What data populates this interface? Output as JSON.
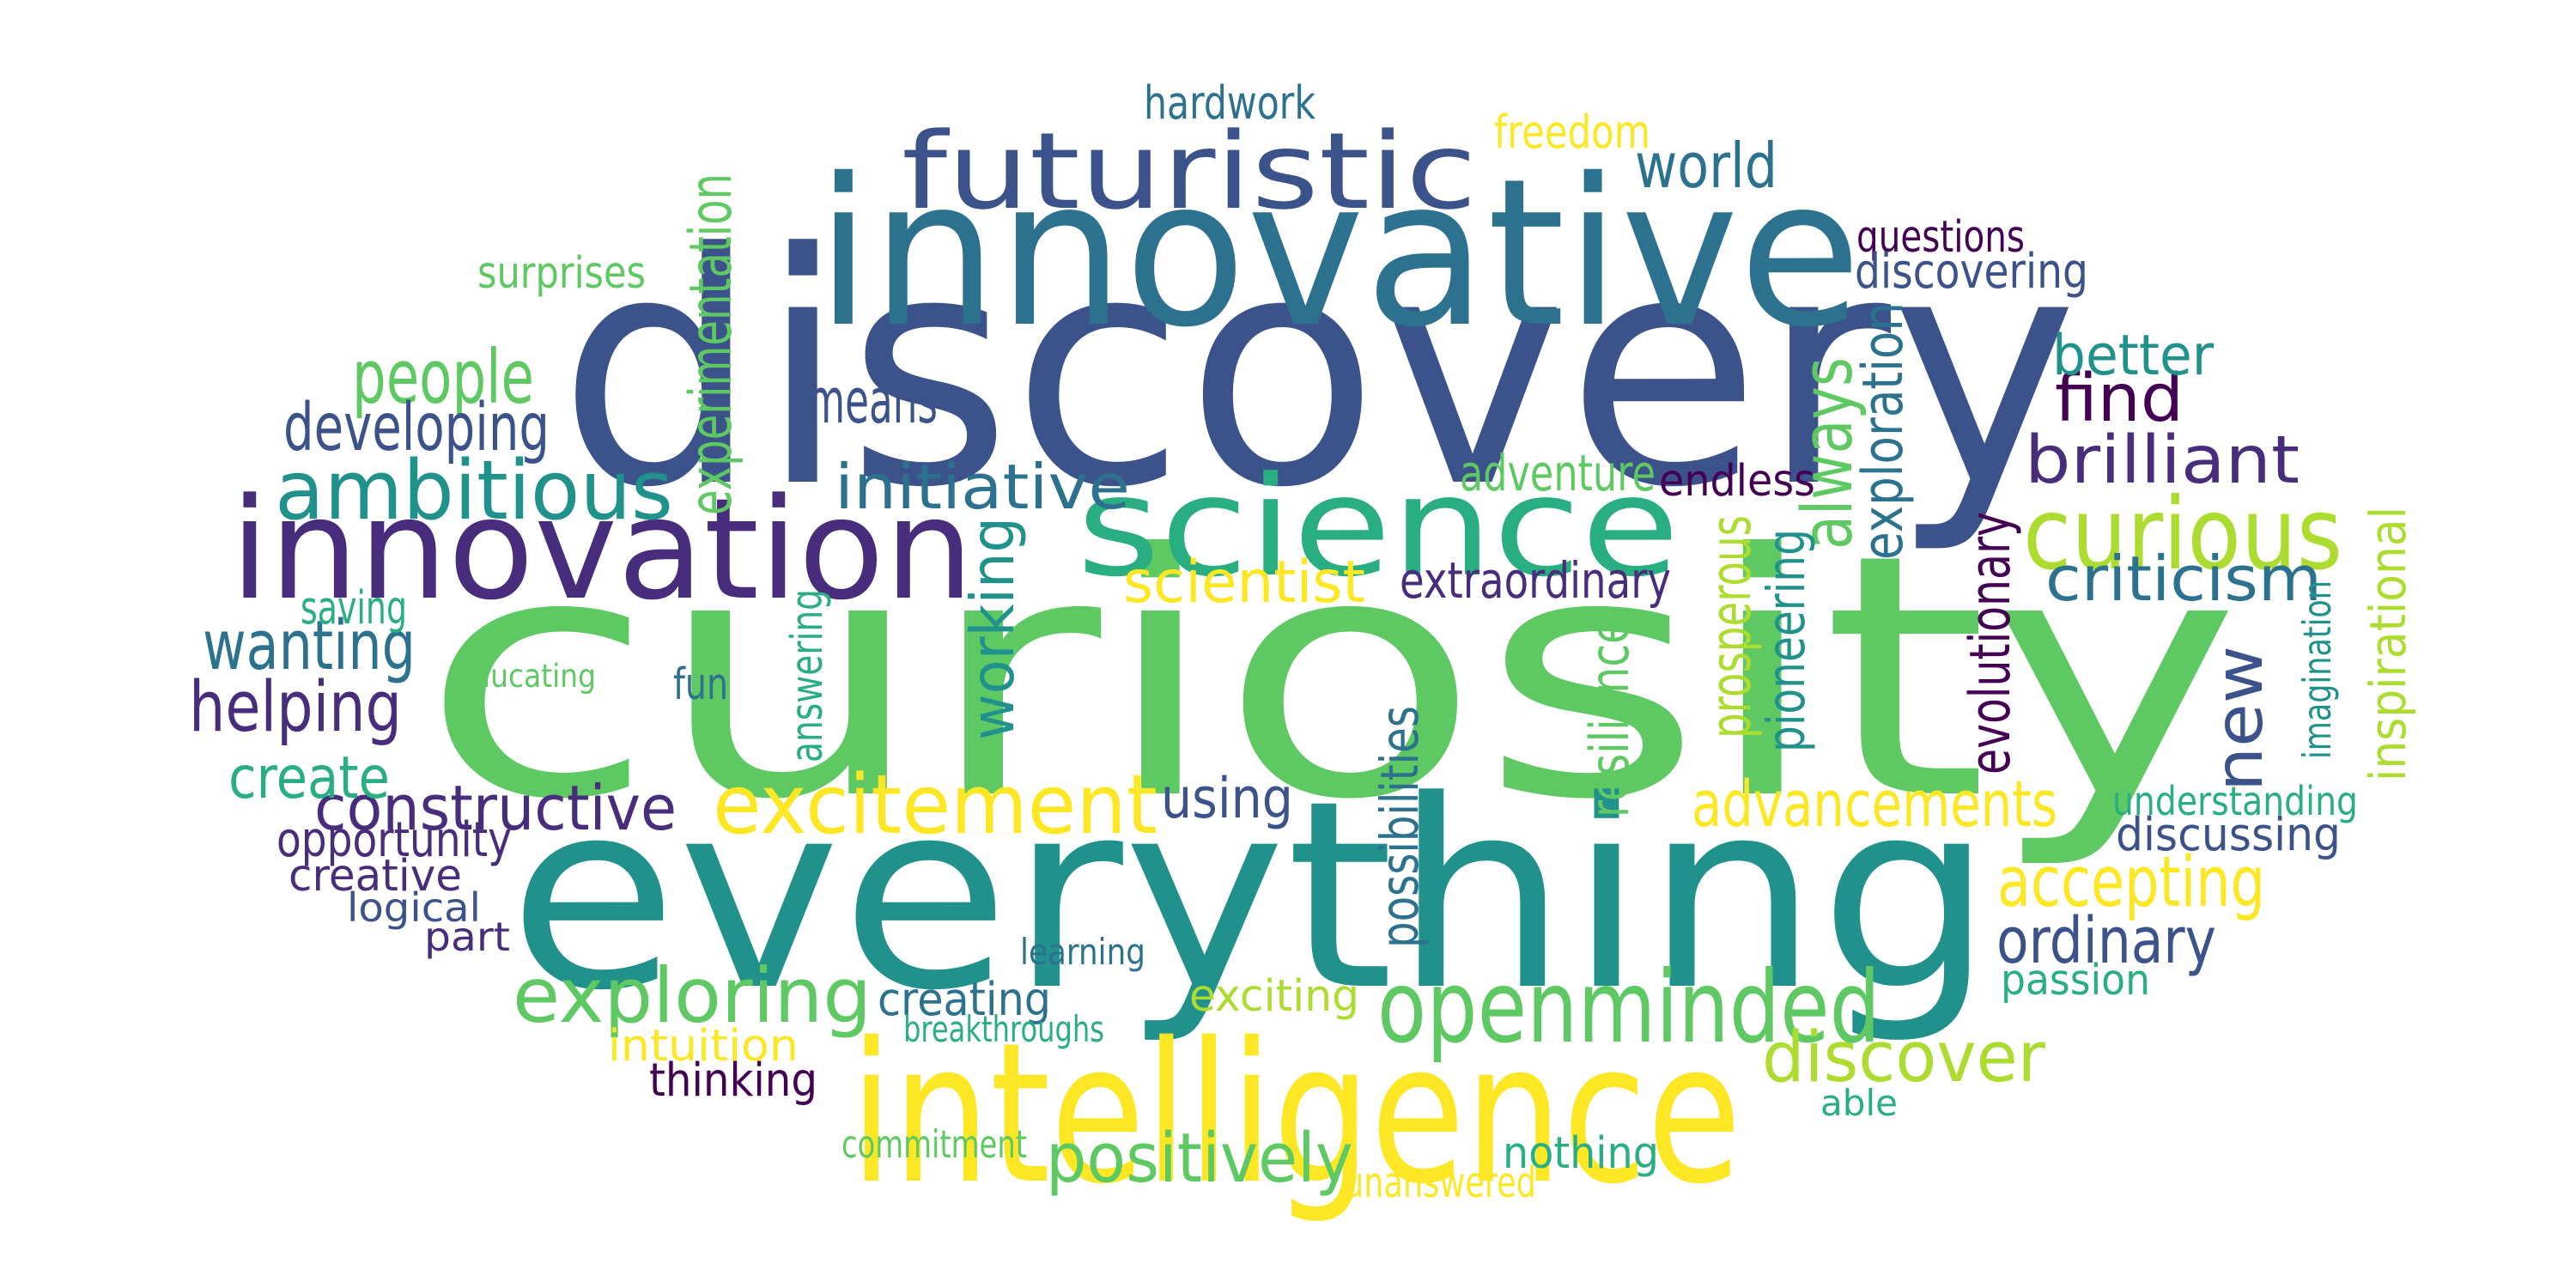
{
  "palette": {
    "dark_purple": "#440154",
    "purple": "#472d7b",
    "indigo": "#3b528b",
    "blue": "#2c728e",
    "teal": "#21918c",
    "sea_green": "#28ae80",
    "green": "#5ec962",
    "lime": "#addc30",
    "yellow": "#fde725"
  },
  "words": [
    {
      "text": "curiosity",
      "color": "green",
      "vertical": false
    },
    {
      "text": "discovery",
      "color": "indigo",
      "vertical": false
    },
    {
      "text": "everything",
      "color": "teal",
      "vertical": false
    },
    {
      "text": "innovative",
      "color": "blue",
      "vertical": false
    },
    {
      "text": "intelligence",
      "color": "yellow",
      "vertical": false
    },
    {
      "text": "innovation",
      "color": "purple",
      "vertical": false
    },
    {
      "text": "science",
      "color": "sea_green",
      "vertical": false
    },
    {
      "text": "futuristic",
      "color": "indigo",
      "vertical": false
    },
    {
      "text": "openminded",
      "color": "green",
      "vertical": false
    },
    {
      "text": "curious",
      "color": "lime",
      "vertical": false
    },
    {
      "text": "excitement",
      "color": "yellow",
      "vertical": false
    },
    {
      "text": "exploring",
      "color": "green",
      "vertical": false
    },
    {
      "text": "ambitious",
      "color": "teal",
      "vertical": false
    },
    {
      "text": "new",
      "color": "indigo",
      "vertical": true
    },
    {
      "text": "positively",
      "color": "green",
      "vertical": false
    },
    {
      "text": "discover",
      "color": "lime",
      "vertical": false
    },
    {
      "text": "accepting",
      "color": "yellow",
      "vertical": false
    },
    {
      "text": "brilliant",
      "color": "purple",
      "vertical": false
    },
    {
      "text": "criticism",
      "color": "blue",
      "vertical": false
    },
    {
      "text": "advancements",
      "color": "yellow",
      "vertical": false
    },
    {
      "text": "constructive",
      "color": "purple",
      "vertical": false
    },
    {
      "text": "initiative",
      "color": "blue",
      "vertical": false
    },
    {
      "text": "people",
      "color": "green",
      "vertical": false
    },
    {
      "text": "wanting",
      "color": "blue",
      "vertical": false
    },
    {
      "text": "helping",
      "color": "purple",
      "vertical": false
    },
    {
      "text": "developing",
      "color": "indigo",
      "vertical": false
    },
    {
      "text": "working",
      "color": "teal",
      "vertical": true
    },
    {
      "text": "always",
      "color": "green",
      "vertical": true
    },
    {
      "text": "ordinary",
      "color": "indigo",
      "vertical": false
    },
    {
      "text": "find",
      "color": "dark_purple",
      "vertical": false
    },
    {
      "text": "world",
      "color": "blue",
      "vertical": false
    },
    {
      "text": "better",
      "color": "teal",
      "vertical": false
    },
    {
      "text": "means",
      "color": "indigo",
      "vertical": false
    },
    {
      "text": "scientist",
      "color": "yellow",
      "vertical": false
    },
    {
      "text": "create",
      "color": "sea_green",
      "vertical": false
    },
    {
      "text": "using",
      "color": "indigo",
      "vertical": false
    },
    {
      "text": "hardwork",
      "color": "blue",
      "vertical": false
    },
    {
      "text": "freedom",
      "color": "yellow",
      "vertical": false
    },
    {
      "text": "questions",
      "color": "dark_purple",
      "vertical": false
    },
    {
      "text": "discovering",
      "color": "indigo",
      "vertical": false
    },
    {
      "text": "surprises",
      "color": "green",
      "vertical": false
    },
    {
      "text": "experimentation",
      "color": "green",
      "vertical": true
    },
    {
      "text": "adventure",
      "color": "green",
      "vertical": false
    },
    {
      "text": "endless",
      "color": "dark_purple",
      "vertical": false
    },
    {
      "text": "exploration",
      "color": "blue",
      "vertical": true
    },
    {
      "text": "extraordinary",
      "color": "purple",
      "vertical": false
    },
    {
      "text": "prosperous",
      "color": "lime",
      "vertical": true
    },
    {
      "text": "pioneering",
      "color": "teal",
      "vertical": true
    },
    {
      "text": "evolutionary",
      "color": "dark_purple",
      "vertical": true
    },
    {
      "text": "inspirational",
      "color": "lime",
      "vertical": true
    },
    {
      "text": "imagination",
      "color": "teal",
      "vertical": true
    },
    {
      "text": "saving",
      "color": "sea_green",
      "vertical": false
    },
    {
      "text": "educating",
      "color": "green",
      "vertical": false
    },
    {
      "text": "fun",
      "color": "blue",
      "vertical": false
    },
    {
      "text": "answering",
      "color": "sea_green",
      "vertical": true
    },
    {
      "text": "possibilities",
      "color": "blue",
      "vertical": true
    },
    {
      "text": "resilience",
      "color": "green",
      "vertical": true
    },
    {
      "text": "understanding",
      "color": "sea_green",
      "vertical": false
    },
    {
      "text": "discussing",
      "color": "indigo",
      "vertical": false
    },
    {
      "text": "opportunity",
      "color": "purple",
      "vertical": false
    },
    {
      "text": "creative",
      "color": "purple",
      "vertical": false
    },
    {
      "text": "logical",
      "color": "indigo",
      "vertical": false
    },
    {
      "text": "part",
      "color": "purple",
      "vertical": false
    },
    {
      "text": "learning",
      "color": "blue",
      "vertical": false
    },
    {
      "text": "passion",
      "color": "sea_green",
      "vertical": false
    },
    {
      "text": "creating",
      "color": "blue",
      "vertical": false
    },
    {
      "text": "exciting",
      "color": "lime",
      "vertical": false
    },
    {
      "text": "intuition",
      "color": "yellow",
      "vertical": false
    },
    {
      "text": "breakthroughs",
      "color": "sea_green",
      "vertical": false
    },
    {
      "text": "thinking",
      "color": "dark_purple",
      "vertical": false
    },
    {
      "text": "able",
      "color": "sea_green",
      "vertical": false
    },
    {
      "text": "commitment",
      "color": "green",
      "vertical": false
    },
    {
      "text": "nothing",
      "color": "sea_green",
      "vertical": false
    },
    {
      "text": "unanswered",
      "color": "yellow",
      "vertical": false
    }
  ]
}
